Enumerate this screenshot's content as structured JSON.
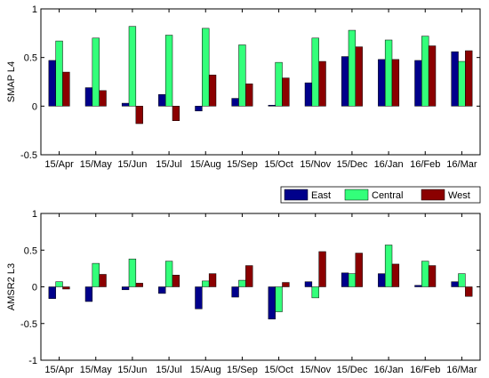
{
  "chart_data": [
    {
      "type": "bar",
      "ylabel": "SMAP L4",
      "xlabel": "",
      "title": "",
      "ylim": [
        -0.5,
        1
      ],
      "yticks": [
        "-0.5",
        "0",
        "0.5",
        "1"
      ],
      "grid": false,
      "categories": [
        "15/Apr",
        "15/May",
        "15/Jun",
        "15/Jul",
        "15/Aug",
        "15/Sep",
        "15/Oct",
        "15/Nov",
        "15/Dec",
        "16/Jan",
        "16/Feb",
        "16/Mar"
      ],
      "series": [
        {
          "name": "East",
          "color": "#00008b",
          "values": [
            0.47,
            0.19,
            0.03,
            0.12,
            -0.05,
            0.08,
            0.01,
            0.24,
            0.51,
            0.48,
            0.47,
            0.56
          ]
        },
        {
          "name": "Central",
          "color": "#33ff7a",
          "values": [
            0.67,
            0.7,
            0.82,
            0.73,
            0.8,
            0.63,
            0.45,
            0.7,
            0.78,
            0.68,
            0.72,
            0.46
          ]
        },
        {
          "name": "West",
          "color": "#8b0000",
          "values": [
            0.35,
            0.16,
            -0.18,
            -0.15,
            0.32,
            0.23,
            0.29,
            0.46,
            0.61,
            0.48,
            0.62,
            0.57
          ]
        }
      ]
    },
    {
      "type": "bar",
      "ylabel": "AMSR2 L3",
      "xlabel": "",
      "title": "",
      "ylim": [
        -1,
        1
      ],
      "yticks": [
        "-1",
        "-0.5",
        "0",
        "0.5",
        "1"
      ],
      "grid": false,
      "categories": [
        "15/Apr",
        "15/May",
        "15/Jun",
        "15/Jul",
        "15/Aug",
        "15/Sep",
        "15/Oct",
        "15/Nov",
        "15/Dec",
        "16/Jan",
        "16/Feb",
        "16/Mar"
      ],
      "series": [
        {
          "name": "East",
          "color": "#00008b",
          "values": [
            -0.16,
            -0.2,
            -0.04,
            -0.09,
            -0.3,
            -0.14,
            -0.44,
            0.07,
            0.19,
            0.18,
            0.02,
            0.07
          ]
        },
        {
          "name": "Central",
          "color": "#33ff7a",
          "values": [
            0.07,
            0.32,
            0.38,
            0.35,
            0.08,
            0.09,
            -0.34,
            -0.15,
            0.18,
            0.57,
            0.35,
            0.18
          ]
        },
        {
          "name": "West",
          "color": "#8b0000",
          "values": [
            -0.03,
            0.17,
            0.05,
            0.16,
            0.18,
            0.29,
            0.06,
            0.48,
            0.46,
            0.31,
            0.29,
            -0.13
          ]
        }
      ]
    }
  ],
  "legend": {
    "placement": "between-panels-right",
    "items": [
      {
        "label": "East",
        "color": "#00008b"
      },
      {
        "label": "Central",
        "color": "#33ff7a"
      },
      {
        "label": "West",
        "color": "#8b0000"
      }
    ]
  }
}
